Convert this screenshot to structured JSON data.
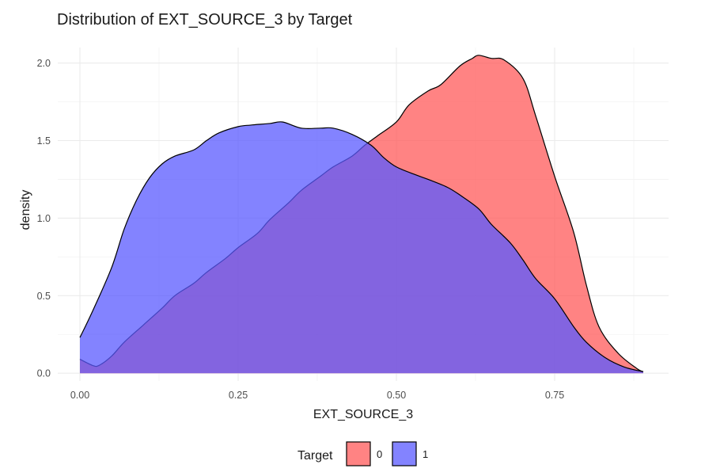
{
  "chart_data": {
    "type": "area",
    "subtype": "density",
    "title": "Distribution of EXT_SOURCE_3 by Target",
    "xlabel": "EXT_SOURCE_3",
    "ylabel": "density",
    "xlim": [
      -0.035,
      0.93
    ],
    "ylim": [
      -0.05,
      2.1
    ],
    "x_ticks": [
      0.0,
      0.25,
      0.5,
      0.75
    ],
    "x_tick_labels": [
      "0.00",
      "0.25",
      "0.50",
      "0.75"
    ],
    "y_ticks": [
      0.0,
      0.5,
      1.0,
      1.5,
      2.0
    ],
    "y_tick_labels": [
      "0.0",
      "0.5",
      "1.0",
      "1.5",
      "2.0"
    ],
    "grid": true,
    "legend": {
      "title": "Target",
      "position": "bottom"
    },
    "series": [
      {
        "name": "0",
        "color": "#ff5a5a",
        "opacity": 0.75,
        "points": [
          [
            0.0,
            0.09
          ],
          [
            0.02,
            0.05
          ],
          [
            0.03,
            0.05
          ],
          [
            0.05,
            0.11
          ],
          [
            0.07,
            0.2
          ],
          [
            0.1,
            0.31
          ],
          [
            0.13,
            0.42
          ],
          [
            0.15,
            0.5
          ],
          [
            0.18,
            0.58
          ],
          [
            0.2,
            0.65
          ],
          [
            0.23,
            0.74
          ],
          [
            0.25,
            0.81
          ],
          [
            0.28,
            0.9
          ],
          [
            0.3,
            0.99
          ],
          [
            0.33,
            1.1
          ],
          [
            0.35,
            1.18
          ],
          [
            0.38,
            1.27
          ],
          [
            0.4,
            1.33
          ],
          [
            0.43,
            1.4
          ],
          [
            0.45,
            1.47
          ],
          [
            0.47,
            1.53
          ],
          [
            0.5,
            1.62
          ],
          [
            0.52,
            1.73
          ],
          [
            0.55,
            1.82
          ],
          [
            0.57,
            1.86
          ],
          [
            0.6,
            1.98
          ],
          [
            0.62,
            2.03
          ],
          [
            0.63,
            2.05
          ],
          [
            0.65,
            2.03
          ],
          [
            0.67,
            2.02
          ],
          [
            0.7,
            1.9
          ],
          [
            0.72,
            1.66
          ],
          [
            0.75,
            1.27
          ],
          [
            0.78,
            0.91
          ],
          [
            0.8,
            0.57
          ],
          [
            0.82,
            0.3
          ],
          [
            0.85,
            0.13
          ],
          [
            0.88,
            0.03
          ],
          [
            0.89,
            0.01
          ]
        ]
      },
      {
        "name": "1",
        "color": "#5a5aff",
        "opacity": 0.75,
        "points": [
          [
            0.0,
            0.23
          ],
          [
            0.02,
            0.4
          ],
          [
            0.05,
            0.68
          ],
          [
            0.07,
            0.93
          ],
          [
            0.09,
            1.12
          ],
          [
            0.11,
            1.26
          ],
          [
            0.13,
            1.35
          ],
          [
            0.15,
            1.4
          ],
          [
            0.18,
            1.44
          ],
          [
            0.2,
            1.5
          ],
          [
            0.22,
            1.55
          ],
          [
            0.25,
            1.59
          ],
          [
            0.27,
            1.6
          ],
          [
            0.3,
            1.61
          ],
          [
            0.32,
            1.62
          ],
          [
            0.35,
            1.58
          ],
          [
            0.38,
            1.58
          ],
          [
            0.4,
            1.58
          ],
          [
            0.43,
            1.54
          ],
          [
            0.46,
            1.47
          ],
          [
            0.48,
            1.39
          ],
          [
            0.5,
            1.33
          ],
          [
            0.53,
            1.28
          ],
          [
            0.55,
            1.25
          ],
          [
            0.58,
            1.2
          ],
          [
            0.6,
            1.15
          ],
          [
            0.63,
            1.06
          ],
          [
            0.65,
            0.96
          ],
          [
            0.68,
            0.84
          ],
          [
            0.7,
            0.73
          ],
          [
            0.72,
            0.61
          ],
          [
            0.75,
            0.48
          ],
          [
            0.78,
            0.3
          ],
          [
            0.8,
            0.2
          ],
          [
            0.83,
            0.1
          ],
          [
            0.86,
            0.04
          ],
          [
            0.89,
            0.01
          ]
        ]
      }
    ]
  }
}
